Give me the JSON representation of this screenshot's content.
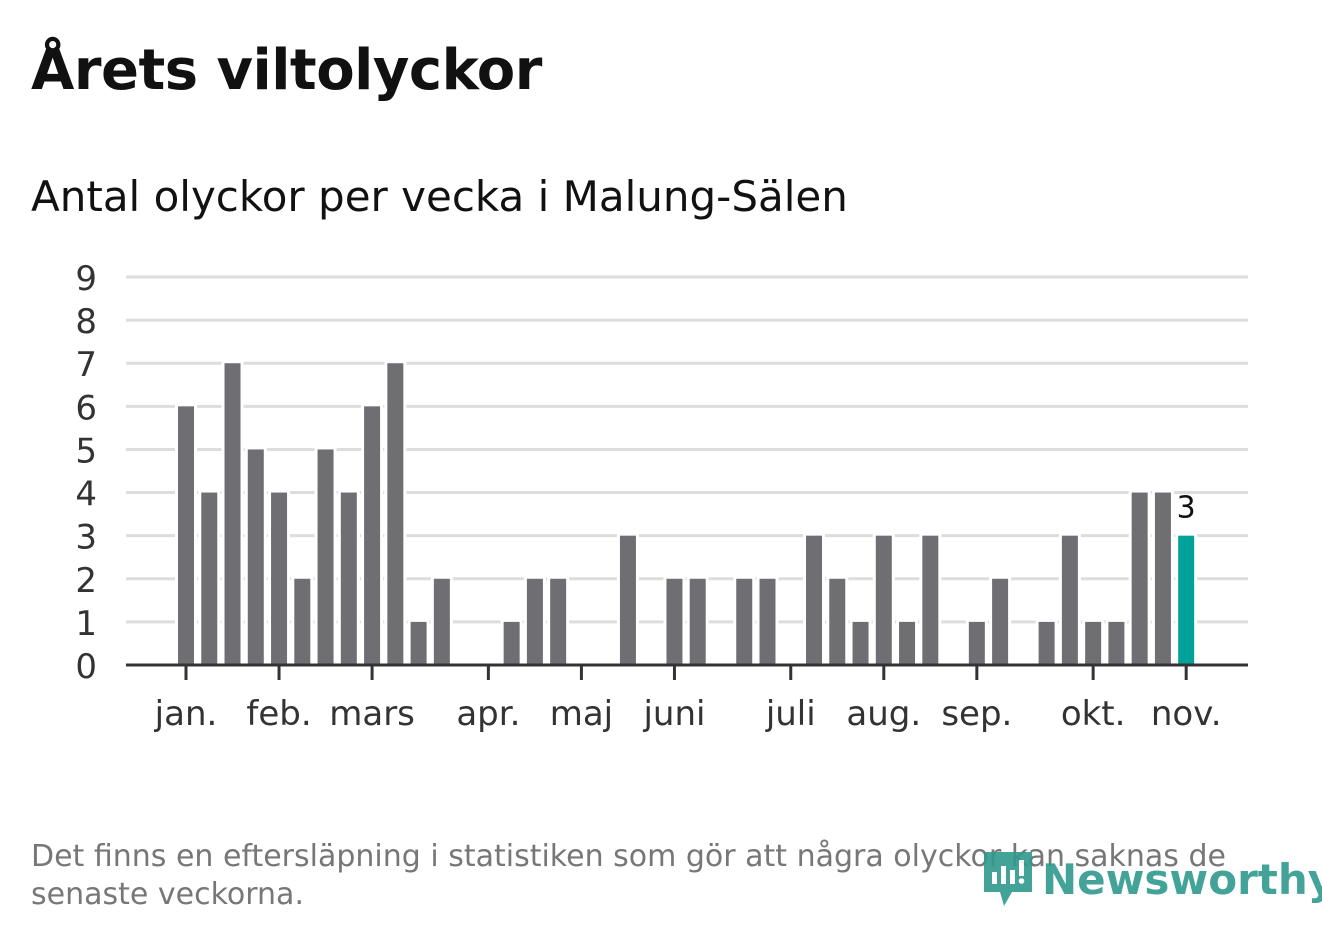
{
  "title": "Årets viltolyckor",
  "subtitle": "Antal olyckor per vecka i Malung-Sälen",
  "note": "Det finns en eftersläpning i statistiken som gör att några olyckor kan saknas de senaste veckorna.",
  "logo": "Newsworthy",
  "colors": {
    "bar": "#6f6e73",
    "highlight": "#00a29a",
    "grid": "#dddddd",
    "axis": "#333333"
  },
  "chart_data": {
    "type": "bar",
    "title": "Antal olyckor per vecka i Malung-Sälen",
    "xlabel": "",
    "ylabel": "",
    "ylim": [
      0,
      9
    ],
    "yticks": [
      0,
      1,
      2,
      3,
      4,
      5,
      6,
      7,
      8,
      9
    ],
    "grid": true,
    "values": [
      6,
      4,
      7,
      5,
      4,
      2,
      5,
      4,
      6,
      7,
      1,
      2,
      0,
      0,
      1,
      2,
      2,
      0,
      0,
      3,
      0,
      2,
      2,
      0,
      2,
      2,
      0,
      3,
      2,
      1,
      3,
      1,
      3,
      0,
      1,
      2,
      0,
      1,
      3,
      1,
      1,
      4,
      4,
      3
    ],
    "highlight_index": 43,
    "highlight_label": "3",
    "month_ticks": [
      {
        "label": "jan.",
        "week_index": 0
      },
      {
        "label": "feb.",
        "week_index": 4
      },
      {
        "label": "mars",
        "week_index": 8
      },
      {
        "label": "apr.",
        "week_index": 13
      },
      {
        "label": "maj",
        "week_index": 17
      },
      {
        "label": "juni",
        "week_index": 21
      },
      {
        "label": "juli",
        "week_index": 26
      },
      {
        "label": "aug.",
        "week_index": 30
      },
      {
        "label": "sep.",
        "week_index": 34
      },
      {
        "label": "okt.",
        "week_index": 39
      },
      {
        "label": "nov.",
        "week_index": 43
      }
    ]
  }
}
